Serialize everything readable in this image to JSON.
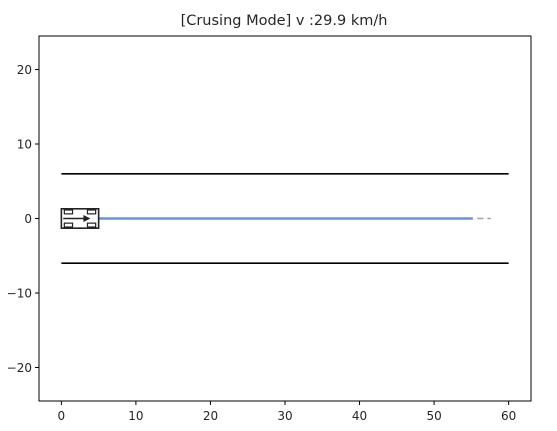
{
  "chart_data": {
    "type": "line",
    "title": "[Crusing Mode]  v :29.9 km/h",
    "xlabel": "",
    "ylabel": "",
    "xlim": [
      -3,
      63
    ],
    "ylim": [
      -24.5,
      24.5
    ],
    "xticks": [
      0,
      10,
      20,
      30,
      40,
      50,
      60
    ],
    "yticks": [
      20,
      10,
      0,
      -10,
      -20
    ],
    "xtick_labels": [
      "0",
      "10",
      "20",
      "30",
      "40",
      "50",
      "60"
    ],
    "ytick_labels": [
      "20",
      "10",
      "0",
      "−10",
      "−20"
    ],
    "grid": false,
    "legend": "none",
    "series": [
      {
        "role": "lane-boundary",
        "color": "#000000",
        "x": [
          0,
          60
        ],
        "y": [
          6,
          6
        ]
      },
      {
        "role": "lane-boundary",
        "color": "#000000",
        "x": [
          0,
          60
        ],
        "y": [
          -6,
          -6
        ]
      },
      {
        "role": "planned-path",
        "color": "#6f8ee0",
        "x": [
          5,
          55.2
        ],
        "y": [
          0,
          0
        ]
      },
      {
        "role": "path-extension",
        "color": "#a0a0a0",
        "style": "dashed",
        "x": [
          55.8,
          57.6
        ],
        "y": [
          0,
          0
        ]
      }
    ],
    "vehicle": {
      "color": "#222222",
      "x": [
        0,
        5
      ],
      "y": [
        -1.3,
        1.3
      ],
      "heading": "right"
    }
  }
}
